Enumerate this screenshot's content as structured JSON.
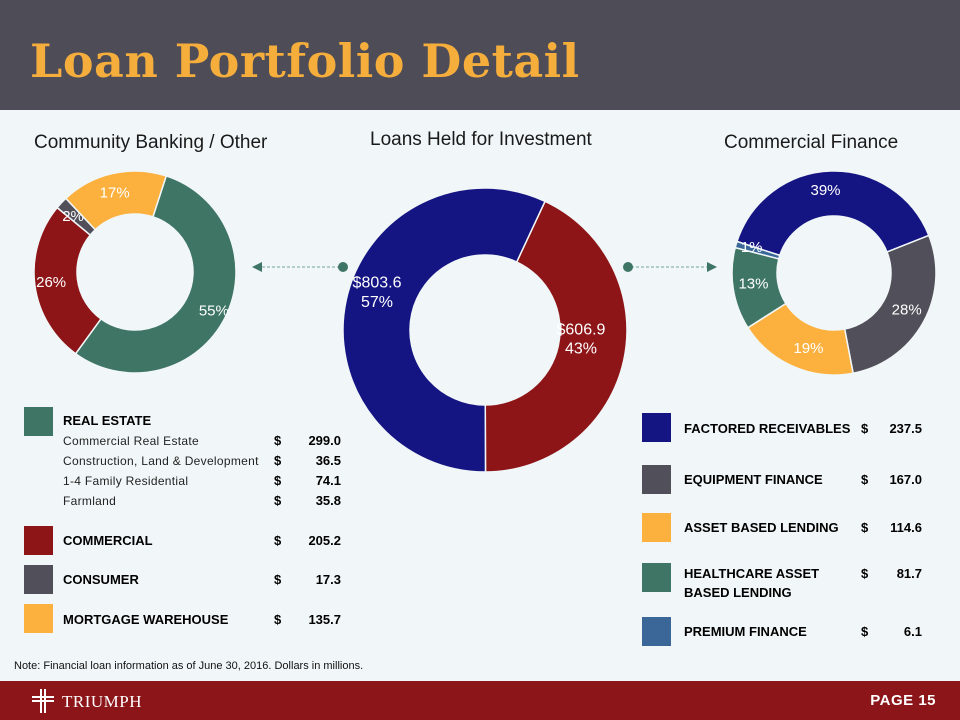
{
  "title": "Loan Portfolio Detail",
  "colors": {
    "real_estate": "#3f7565",
    "commercial": "#8d1518",
    "consumer": "#51505a",
    "mortgage_warehouse": "#fcb03e",
    "factored": "#141582",
    "equipment": "#51505a",
    "asset_based": "#fcb03e",
    "healthcare": "#3f7565",
    "premium": "#3a6797"
  },
  "chart_data": [
    {
      "type": "pie",
      "title": "Community Banking / Other",
      "categories": [
        "Real Estate",
        "Commercial",
        "Consumer",
        "Mortgage Warehouse"
      ],
      "values": [
        55,
        26,
        2,
        17
      ],
      "labels": [
        "55%",
        "26%",
        "2%",
        "17%"
      ]
    },
    {
      "type": "pie",
      "title": "Loans Held for Investment",
      "categories": [
        "Community Banking / Other",
        "Commercial Finance"
      ],
      "values": [
        57,
        43
      ],
      "labels": [
        [
          "$803.6",
          "57%"
        ],
        [
          "$606.9",
          "43%"
        ]
      ]
    },
    {
      "type": "pie",
      "title": "Commercial Finance",
      "categories": [
        "Factored Receivables",
        "Equipment Finance",
        "Asset Based Lending",
        "Healthcare Asset Based Lending",
        "Premium Finance"
      ],
      "values": [
        39,
        28,
        19,
        13,
        1
      ],
      "labels": [
        "39%",
        "28%",
        "19%",
        "13%",
        "1%"
      ]
    }
  ],
  "left_legend": {
    "real_estate": {
      "label": "REAL ESTATE",
      "items": [
        {
          "name": "Commercial Real Estate",
          "dollar": "$",
          "amount": "299.0"
        },
        {
          "name": "Construction, Land & Development",
          "dollar": "$",
          "amount": "36.5"
        },
        {
          "name": "1-4 Family Residential",
          "dollar": "$",
          "amount": "74.1"
        },
        {
          "name": "Farmland",
          "dollar": "$",
          "amount": "35.8"
        }
      ]
    },
    "commercial": {
      "label": "COMMERCIAL",
      "dollar": "$",
      "amount": "205.2"
    },
    "consumer": {
      "label": "CONSUMER",
      "dollar": "$",
      "amount": "17.3"
    },
    "mortgage": {
      "label": "MORTGAGE WAREHOUSE",
      "dollar": "$",
      "amount": "135.7"
    }
  },
  "right_legend": {
    "factored": {
      "label": "FACTORED RECEIVABLES",
      "dollar": "$",
      "amount": "237.5"
    },
    "equipment": {
      "label": "EQUIPMENT FINANCE",
      "dollar": "$",
      "amount": "167.0"
    },
    "asset_based": {
      "label": "ASSET BASED LENDING",
      "dollar": "$",
      "amount": "114.6"
    },
    "healthcare": {
      "label_line1": "HEALTHCARE ASSET",
      "label_line2": "BASED LENDING",
      "dollar": "$",
      "amount": "81.7"
    },
    "premium": {
      "label": "PREMIUM FINANCE",
      "dollar": "$",
      "amount": "6.1"
    }
  },
  "note": "Note: Financial loan information as of June 30, 2016. Dollars in millions.",
  "footer": {
    "brand": "TRIUMPH",
    "page": "PAGE 15"
  }
}
